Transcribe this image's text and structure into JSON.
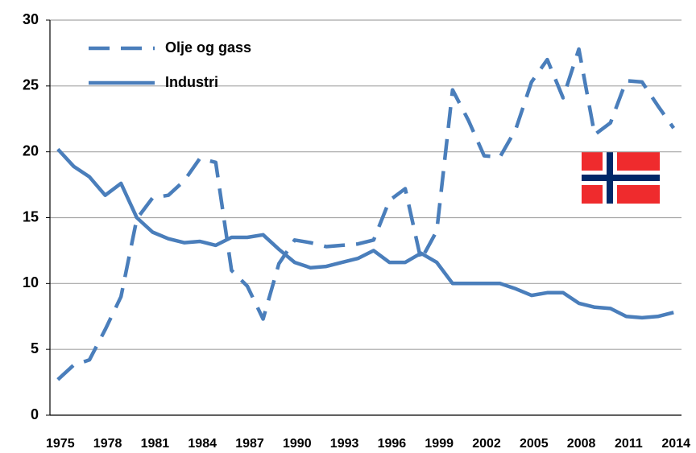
{
  "chart_data": {
    "type": "line",
    "categories": [
      "1975",
      null,
      null,
      "1978",
      null,
      null,
      "1981",
      null,
      null,
      "1984",
      null,
      null,
      "1987",
      null,
      null,
      "1990",
      null,
      null,
      "1993",
      null,
      null,
      "1996",
      null,
      null,
      "1999",
      null,
      null,
      "2002",
      null,
      null,
      "2005",
      null,
      null,
      "2008",
      null,
      null,
      "2011",
      null,
      null,
      "2014"
    ],
    "series": [
      {
        "name": "Olje og gass",
        "color": "#4a7ebb",
        "dashed": true,
        "values": [
          2.7,
          3.8,
          4.2,
          6.5,
          9.0,
          14.9,
          16.5,
          16.7,
          17.8,
          19.5,
          19.2,
          11.0,
          9.8,
          7.3,
          11.5,
          13.3,
          13.1,
          12.8,
          12.9,
          13.0,
          13.3,
          16.3,
          17.2,
          11.8,
          14.0,
          24.7,
          22.4,
          19.7,
          19.6,
          21.7,
          25.3,
          27.0,
          24.1,
          27.8,
          21.3,
          22.2,
          25.4,
          25.3,
          23.5,
          21.8
        ]
      },
      {
        "name": "Industri",
        "color": "#4a7ebb",
        "dashed": false,
        "values": [
          20.2,
          18.9,
          18.1,
          16.7,
          17.6,
          15.0,
          13.9,
          13.4,
          13.1,
          13.2,
          12.9,
          13.5,
          13.5,
          13.7,
          12.6,
          11.6,
          11.2,
          11.3,
          11.6,
          11.9,
          12.5,
          11.6,
          11.6,
          12.3,
          11.6,
          10.0,
          10.0,
          10.0,
          10.0,
          9.6,
          9.1,
          9.3,
          9.3,
          8.5,
          8.2,
          8.1,
          7.5,
          7.4,
          7.5,
          7.8
        ]
      }
    ],
    "ylim": [
      0,
      30
    ],
    "yticks": [
      0,
      5,
      10,
      15,
      20,
      25,
      30
    ],
    "grid": true,
    "legend": "upper-left"
  }
}
